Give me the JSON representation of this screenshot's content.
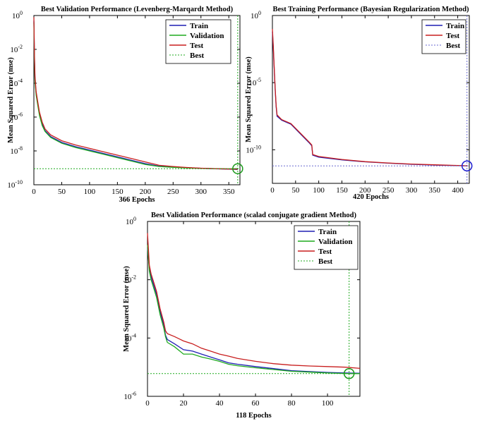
{
  "chart_data": [
    {
      "type": "line",
      "title": "Best Validation Performance (Levenberg-Marqardt Method)",
      "xlabel": "366 Epochs",
      "ylabel": "Mean Squared Error  (mse)",
      "xlim": [
        0,
        370
      ],
      "ylim_log10": [
        -10,
        0
      ],
      "xticks": [
        "0",
        "50",
        "100",
        "150",
        "200",
        "250",
        "300",
        "350"
      ],
      "xtick_values": [
        0,
        50,
        100,
        150,
        200,
        250,
        300,
        350
      ],
      "yticks": [
        {
          "base": "10",
          "exp": "0"
        },
        {
          "base": "10",
          "exp": "-2"
        },
        {
          "base": "10",
          "exp": "-4"
        },
        {
          "base": "10",
          "exp": "-6"
        },
        {
          "base": "10",
          "exp": "-8"
        },
        {
          "base": "10",
          "exp": "-10"
        }
      ],
      "ytick_exponents": [
        0,
        -2,
        -4,
        -6,
        -8,
        -10
      ],
      "legend": [
        "Train",
        "Validation",
        "Test",
        "Best"
      ],
      "colors": {
        "Train": "#1f1fb4",
        "Validation": "#1faa1f",
        "Test": "#c81e1e",
        "Best": "#1faa1f",
        "marker": "#1a9a1a"
      },
      "best": {
        "epoch": 366,
        "log10_mse": -9.05
      },
      "series": [
        {
          "name": "Train",
          "points": [
            [
              0,
              -0.3
            ],
            [
              1,
              -2.5
            ],
            [
              2,
              -3.8
            ],
            [
              4,
              -4.6
            ],
            [
              7,
              -5.2
            ],
            [
              10,
              -5.8
            ],
            [
              15,
              -6.4
            ],
            [
              20,
              -6.8
            ],
            [
              30,
              -7.15
            ],
            [
              50,
              -7.5
            ],
            [
              75,
              -7.75
            ],
            [
              100,
              -7.95
            ],
            [
              125,
              -8.15
            ],
            [
              150,
              -8.35
            ],
            [
              175,
              -8.55
            ],
            [
              200,
              -8.75
            ],
            [
              225,
              -8.9
            ],
            [
              250,
              -8.95
            ],
            [
              275,
              -9.0
            ],
            [
              300,
              -9.03
            ],
            [
              325,
              -9.06
            ],
            [
              350,
              -9.08
            ],
            [
              366,
              -9.1
            ]
          ]
        },
        {
          "name": "Validation",
          "points": [
            [
              0,
              -0.4
            ],
            [
              1,
              -2.7
            ],
            [
              2,
              -3.9
            ],
            [
              4,
              -4.7
            ],
            [
              7,
              -5.3
            ],
            [
              10,
              -5.9
            ],
            [
              15,
              -6.5
            ],
            [
              20,
              -6.85
            ],
            [
              30,
              -7.2
            ],
            [
              50,
              -7.55
            ],
            [
              75,
              -7.8
            ],
            [
              100,
              -8.0
            ],
            [
              125,
              -8.2
            ],
            [
              150,
              -8.4
            ],
            [
              175,
              -8.6
            ],
            [
              200,
              -8.8
            ],
            [
              225,
              -8.92
            ],
            [
              250,
              -8.97
            ],
            [
              275,
              -9.01
            ],
            [
              300,
              -9.03
            ],
            [
              325,
              -9.05
            ],
            [
              350,
              -9.06
            ],
            [
              366,
              -9.05
            ]
          ]
        },
        {
          "name": "Test",
          "points": [
            [
              0,
              -0.1
            ],
            [
              1,
              -2.3
            ],
            [
              2,
              -3.6
            ],
            [
              4,
              -4.5
            ],
            [
              7,
              -5.1
            ],
            [
              10,
              -5.7
            ],
            [
              15,
              -6.3
            ],
            [
              20,
              -6.7
            ],
            [
              30,
              -7.05
            ],
            [
              50,
              -7.4
            ],
            [
              75,
              -7.65
            ],
            [
              100,
              -7.85
            ],
            [
              125,
              -8.05
            ],
            [
              150,
              -8.25
            ],
            [
              175,
              -8.45
            ],
            [
              200,
              -8.65
            ],
            [
              225,
              -8.85
            ],
            [
              250,
              -8.92
            ],
            [
              275,
              -8.98
            ],
            [
              300,
              -9.02
            ],
            [
              325,
              -9.05
            ],
            [
              350,
              -9.07
            ],
            [
              366,
              -9.08
            ]
          ]
        },
        {
          "name": "Best",
          "points": [
            [
              0,
              -9.05
            ],
            [
              370,
              -9.05
            ]
          ]
        }
      ]
    },
    {
      "type": "line",
      "title": "Best Training Performance (Bayesian Regularization Method)",
      "xlabel": "420 Epochs",
      "ylabel": "Mean Squared Error  (mse)",
      "xlim": [
        0,
        425
      ],
      "ylim_log10": [
        -12.5,
        0
      ],
      "xticks": [
        "0",
        "50",
        "100",
        "150",
        "200",
        "250",
        "300",
        "350",
        "400"
      ],
      "xtick_values": [
        0,
        50,
        100,
        150,
        200,
        250,
        300,
        350,
        400
      ],
      "yticks": [
        {
          "base": "10",
          "exp": "0"
        },
        {
          "base": "10",
          "exp": "-5"
        },
        {
          "base": "10",
          "exp": "-10"
        }
      ],
      "ytick_exponents": [
        0,
        -5,
        -10
      ],
      "legend": [
        "Train",
        "Test",
        "Best"
      ],
      "colors": {
        "Train": "#1f1fb4",
        "Test": "#c81e1e",
        "Best": "#6a6ad0",
        "marker": "#1f1fd0"
      },
      "best": {
        "epoch": 420,
        "log10_mse": -11.2
      },
      "series": [
        {
          "name": "Train",
          "points": [
            [
              0,
              -1.2
            ],
            [
              2,
              -2.5
            ],
            [
              4,
              -4.0
            ],
            [
              6,
              -5.5
            ],
            [
              8,
              -6.8
            ],
            [
              10,
              -7.5
            ],
            [
              20,
              -7.8
            ],
            [
              40,
              -8.1
            ],
            [
              60,
              -8.8
            ],
            [
              80,
              -9.5
            ],
            [
              85,
              -9.7
            ],
            [
              87,
              -10.4
            ],
            [
              100,
              -10.55
            ],
            [
              150,
              -10.75
            ],
            [
              200,
              -10.9
            ],
            [
              250,
              -11.0
            ],
            [
              300,
              -11.08
            ],
            [
              350,
              -11.14
            ],
            [
              400,
              -11.18
            ],
            [
              420,
              -11.2
            ]
          ]
        },
        {
          "name": "Test",
          "points": [
            [
              0,
              -1.0
            ],
            [
              2,
              -2.3
            ],
            [
              4,
              -3.9
            ],
            [
              6,
              -5.4
            ],
            [
              8,
              -6.7
            ],
            [
              10,
              -7.4
            ],
            [
              20,
              -7.75
            ],
            [
              40,
              -8.05
            ],
            [
              60,
              -8.75
            ],
            [
              80,
              -9.45
            ],
            [
              85,
              -9.65
            ],
            [
              87,
              -10.35
            ],
            [
              100,
              -10.5
            ],
            [
              150,
              -10.72
            ],
            [
              200,
              -10.88
            ],
            [
              250,
              -10.98
            ],
            [
              300,
              -11.06
            ],
            [
              350,
              -11.12
            ],
            [
              400,
              -11.17
            ],
            [
              420,
              -11.19
            ]
          ]
        },
        {
          "name": "Best",
          "points": [
            [
              0,
              -11.2
            ],
            [
              425,
              -11.2
            ]
          ]
        }
      ]
    },
    {
      "type": "line",
      "title": "Best Validation Performance (scalad conjugate gradient Method)",
      "xlabel": "118 Epochs",
      "ylabel": "Mean Squared Error  (mse)",
      "xlim": [
        0,
        118
      ],
      "ylim_log10": [
        -6,
        0
      ],
      "xticks": [
        "0",
        "20",
        "40",
        "60",
        "80",
        "100"
      ],
      "xtick_values": [
        0,
        20,
        40,
        60,
        80,
        100
      ],
      "yticks": [
        {
          "base": "10",
          "exp": "0"
        },
        {
          "base": "10",
          "exp": "-2"
        },
        {
          "base": "10",
          "exp": "-4"
        },
        {
          "base": "10",
          "exp": "-6"
        }
      ],
      "ytick_exponents": [
        0,
        -2,
        -4,
        -6
      ],
      "legend": [
        "Train",
        "Validation",
        "Test",
        "Best"
      ],
      "colors": {
        "Train": "#1f1fb4",
        "Validation": "#1faa1f",
        "Test": "#c81e1e",
        "Best": "#1faa1f",
        "marker": "#1a9a1a"
      },
      "best": {
        "epoch": 112,
        "log10_mse": -5.22
      },
      "series": [
        {
          "name": "Train",
          "points": [
            [
              0,
              -0.9
            ],
            [
              1,
              -1.6
            ],
            [
              2,
              -1.9
            ],
            [
              3,
              -2.1
            ],
            [
              5,
              -2.5
            ],
            [
              7,
              -3.1
            ],
            [
              9,
              -3.55
            ],
            [
              10,
              -3.9
            ],
            [
              11,
              -4.05
            ],
            [
              15,
              -4.2
            ],
            [
              20,
              -4.4
            ],
            [
              25,
              -4.45
            ],
            [
              30,
              -4.55
            ],
            [
              35,
              -4.65
            ],
            [
              40,
              -4.75
            ],
            [
              45,
              -4.85
            ],
            [
              50,
              -4.9
            ],
            [
              60,
              -4.98
            ],
            [
              70,
              -5.05
            ],
            [
              80,
              -5.12
            ],
            [
              90,
              -5.15
            ],
            [
              100,
              -5.18
            ],
            [
              110,
              -5.2
            ],
            [
              118,
              -5.21
            ]
          ]
        },
        {
          "name": "Validation",
          "points": [
            [
              0,
              -0.8
            ],
            [
              1,
              -1.7
            ],
            [
              2,
              -2.0
            ],
            [
              3,
              -2.2
            ],
            [
              5,
              -2.6
            ],
            [
              7,
              -3.2
            ],
            [
              9,
              -3.65
            ],
            [
              10,
              -3.95
            ],
            [
              11,
              -4.15
            ],
            [
              15,
              -4.3
            ],
            [
              20,
              -4.55
            ],
            [
              25,
              -4.55
            ],
            [
              30,
              -4.65
            ],
            [
              35,
              -4.72
            ],
            [
              40,
              -4.8
            ],
            [
              45,
              -4.9
            ],
            [
              50,
              -4.95
            ],
            [
              60,
              -5.02
            ],
            [
              70,
              -5.08
            ],
            [
              80,
              -5.14
            ],
            [
              90,
              -5.17
            ],
            [
              100,
              -5.2
            ],
            [
              112,
              -5.22
            ],
            [
              118,
              -5.22
            ]
          ]
        },
        {
          "name": "Test",
          "points": [
            [
              0,
              -0.4
            ],
            [
              1,
              -1.5
            ],
            [
              2,
              -1.8
            ],
            [
              3,
              -2.0
            ],
            [
              5,
              -2.4
            ],
            [
              7,
              -3.0
            ],
            [
              9,
              -3.45
            ],
            [
              10,
              -3.75
            ],
            [
              11,
              -3.85
            ],
            [
              15,
              -3.95
            ],
            [
              20,
              -4.1
            ],
            [
              25,
              -4.2
            ],
            [
              30,
              -4.35
            ],
            [
              35,
              -4.45
            ],
            [
              40,
              -4.55
            ],
            [
              45,
              -4.62
            ],
            [
              50,
              -4.7
            ],
            [
              60,
              -4.8
            ],
            [
              70,
              -4.88
            ],
            [
              80,
              -4.93
            ],
            [
              90,
              -4.96
            ],
            [
              100,
              -4.98
            ],
            [
              110,
              -5.0
            ],
            [
              118,
              -5.04
            ]
          ]
        },
        {
          "name": "Best",
          "points": [
            [
              0,
              -5.22
            ],
            [
              118,
              -5.22
            ]
          ]
        }
      ]
    }
  ]
}
